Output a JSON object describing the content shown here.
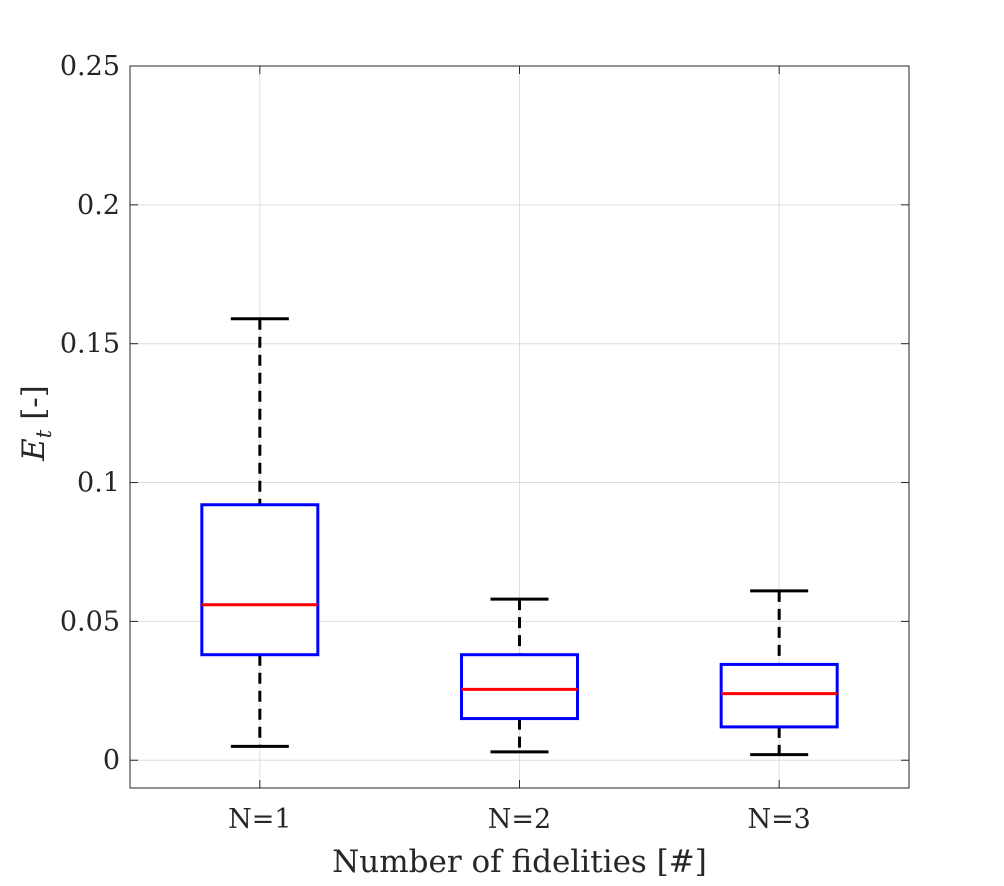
{
  "chart_data": {
    "type": "box",
    "xlabel": "Number of fidelities [#]",
    "ylabel": "E",
    "ylabel_subscript": "t",
    "ylabel_unit": "[-]",
    "categories": [
      "N=1",
      "N=2",
      "N=3"
    ],
    "ylim": [
      -0.01,
      0.25
    ],
    "yticks": [
      0,
      0.05,
      0.1,
      0.15,
      0.2,
      0.25
    ],
    "ytick_labels": [
      "0",
      "0.05",
      "0.1",
      "0.15",
      "0.2",
      "0.25"
    ],
    "grid": true,
    "boxes": [
      {
        "category": "N=1",
        "whisker_low": 0.005,
        "q1": 0.038,
        "median": 0.056,
        "q3": 0.092,
        "whisker_high": 0.159
      },
      {
        "category": "N=2",
        "whisker_low": 0.003,
        "q1": 0.015,
        "median": 0.0255,
        "q3": 0.038,
        "whisker_high": 0.058
      },
      {
        "category": "N=3",
        "whisker_low": 0.002,
        "q1": 0.012,
        "median": 0.024,
        "q3": 0.0345,
        "whisker_high": 0.061
      }
    ],
    "colors": {
      "box": "#0000ff",
      "median": "#ff0000",
      "whisker": "#000000",
      "grid": "#dedede",
      "axes": "#262626"
    }
  }
}
